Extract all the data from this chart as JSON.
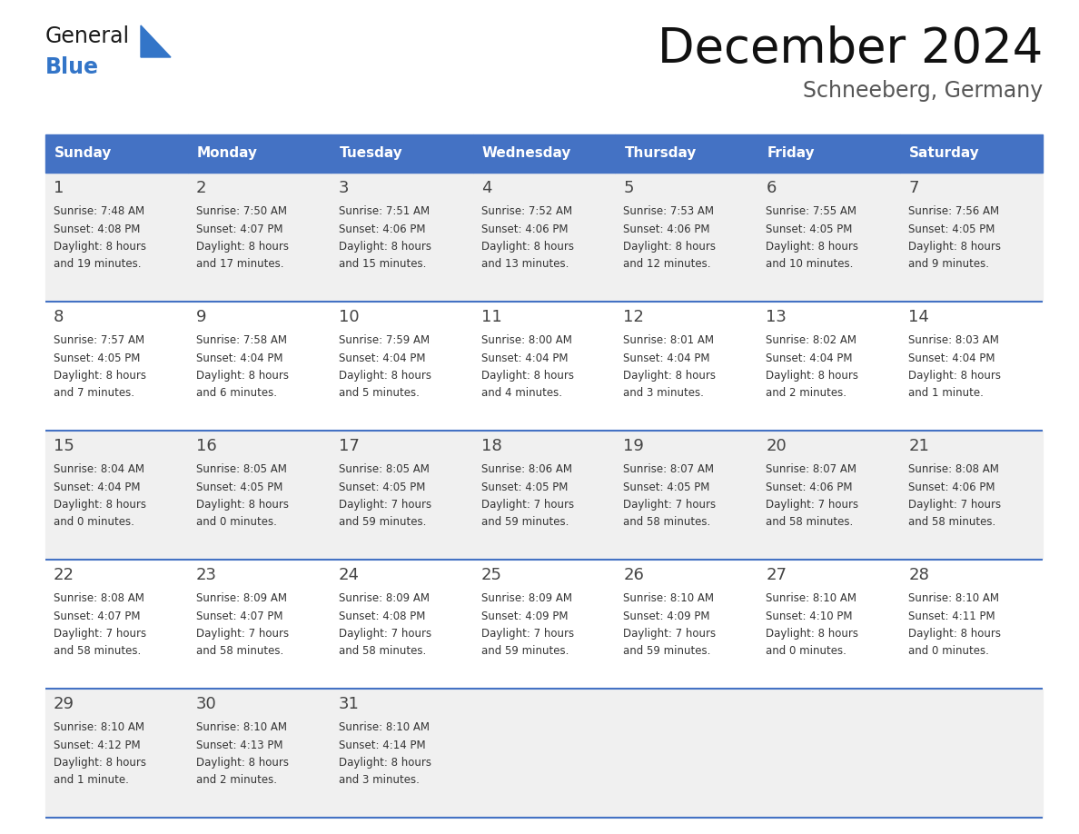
{
  "title": "December 2024",
  "subtitle": "Schneeberg, Germany",
  "header_bg": "#4472C4",
  "header_text_color": "#FFFFFF",
  "row_bg_even": "#F0F0F0",
  "row_bg_odd": "#FFFFFF",
  "border_color": "#4472C4",
  "cell_text_color": "#333333",
  "day_num_color": "#444444",
  "logo_general_color": "#1a1a1a",
  "logo_blue_color": "#3375C8",
  "logo_triangle_color": "#3375C8",
  "title_color": "#111111",
  "subtitle_color": "#555555",
  "day_names": [
    "Sunday",
    "Monday",
    "Tuesday",
    "Wednesday",
    "Thursday",
    "Friday",
    "Saturday"
  ],
  "weeks": [
    [
      {
        "day": "1",
        "sunrise": "7:48 AM",
        "sunset": "4:08 PM",
        "dl1": "Daylight: 8 hours",
        "dl2": "and 19 minutes."
      },
      {
        "day": "2",
        "sunrise": "7:50 AM",
        "sunset": "4:07 PM",
        "dl1": "Daylight: 8 hours",
        "dl2": "and 17 minutes."
      },
      {
        "day": "3",
        "sunrise": "7:51 AM",
        "sunset": "4:06 PM",
        "dl1": "Daylight: 8 hours",
        "dl2": "and 15 minutes."
      },
      {
        "day": "4",
        "sunrise": "7:52 AM",
        "sunset": "4:06 PM",
        "dl1": "Daylight: 8 hours",
        "dl2": "and 13 minutes."
      },
      {
        "day": "5",
        "sunrise": "7:53 AM",
        "sunset": "4:06 PM",
        "dl1": "Daylight: 8 hours",
        "dl2": "and 12 minutes."
      },
      {
        "day": "6",
        "sunrise": "7:55 AM",
        "sunset": "4:05 PM",
        "dl1": "Daylight: 8 hours",
        "dl2": "and 10 minutes."
      },
      {
        "day": "7",
        "sunrise": "7:56 AM",
        "sunset": "4:05 PM",
        "dl1": "Daylight: 8 hours",
        "dl2": "and 9 minutes."
      }
    ],
    [
      {
        "day": "8",
        "sunrise": "7:57 AM",
        "sunset": "4:05 PM",
        "dl1": "Daylight: 8 hours",
        "dl2": "and 7 minutes."
      },
      {
        "day": "9",
        "sunrise": "7:58 AM",
        "sunset": "4:04 PM",
        "dl1": "Daylight: 8 hours",
        "dl2": "and 6 minutes."
      },
      {
        "day": "10",
        "sunrise": "7:59 AM",
        "sunset": "4:04 PM",
        "dl1": "Daylight: 8 hours",
        "dl2": "and 5 minutes."
      },
      {
        "day": "11",
        "sunrise": "8:00 AM",
        "sunset": "4:04 PM",
        "dl1": "Daylight: 8 hours",
        "dl2": "and 4 minutes."
      },
      {
        "day": "12",
        "sunrise": "8:01 AM",
        "sunset": "4:04 PM",
        "dl1": "Daylight: 8 hours",
        "dl2": "and 3 minutes."
      },
      {
        "day": "13",
        "sunrise": "8:02 AM",
        "sunset": "4:04 PM",
        "dl1": "Daylight: 8 hours",
        "dl2": "and 2 minutes."
      },
      {
        "day": "14",
        "sunrise": "8:03 AM",
        "sunset": "4:04 PM",
        "dl1": "Daylight: 8 hours",
        "dl2": "and 1 minute."
      }
    ],
    [
      {
        "day": "15",
        "sunrise": "8:04 AM",
        "sunset": "4:04 PM",
        "dl1": "Daylight: 8 hours",
        "dl2": "and 0 minutes."
      },
      {
        "day": "16",
        "sunrise": "8:05 AM",
        "sunset": "4:05 PM",
        "dl1": "Daylight: 8 hours",
        "dl2": "and 0 minutes."
      },
      {
        "day": "17",
        "sunrise": "8:05 AM",
        "sunset": "4:05 PM",
        "dl1": "Daylight: 7 hours",
        "dl2": "and 59 minutes."
      },
      {
        "day": "18",
        "sunrise": "8:06 AM",
        "sunset": "4:05 PM",
        "dl1": "Daylight: 7 hours",
        "dl2": "and 59 minutes."
      },
      {
        "day": "19",
        "sunrise": "8:07 AM",
        "sunset": "4:05 PM",
        "dl1": "Daylight: 7 hours",
        "dl2": "and 58 minutes."
      },
      {
        "day": "20",
        "sunrise": "8:07 AM",
        "sunset": "4:06 PM",
        "dl1": "Daylight: 7 hours",
        "dl2": "and 58 minutes."
      },
      {
        "day": "21",
        "sunrise": "8:08 AM",
        "sunset": "4:06 PM",
        "dl1": "Daylight: 7 hours",
        "dl2": "and 58 minutes."
      }
    ],
    [
      {
        "day": "22",
        "sunrise": "8:08 AM",
        "sunset": "4:07 PM",
        "dl1": "Daylight: 7 hours",
        "dl2": "and 58 minutes."
      },
      {
        "day": "23",
        "sunrise": "8:09 AM",
        "sunset": "4:07 PM",
        "dl1": "Daylight: 7 hours",
        "dl2": "and 58 minutes."
      },
      {
        "day": "24",
        "sunrise": "8:09 AM",
        "sunset": "4:08 PM",
        "dl1": "Daylight: 7 hours",
        "dl2": "and 58 minutes."
      },
      {
        "day": "25",
        "sunrise": "8:09 AM",
        "sunset": "4:09 PM",
        "dl1": "Daylight: 7 hours",
        "dl2": "and 59 minutes."
      },
      {
        "day": "26",
        "sunrise": "8:10 AM",
        "sunset": "4:09 PM",
        "dl1": "Daylight: 7 hours",
        "dl2": "and 59 minutes."
      },
      {
        "day": "27",
        "sunrise": "8:10 AM",
        "sunset": "4:10 PM",
        "dl1": "Daylight: 8 hours",
        "dl2": "and 0 minutes."
      },
      {
        "day": "28",
        "sunrise": "8:10 AM",
        "sunset": "4:11 PM",
        "dl1": "Daylight: 8 hours",
        "dl2": "and 0 minutes."
      }
    ],
    [
      {
        "day": "29",
        "sunrise": "8:10 AM",
        "sunset": "4:12 PM",
        "dl1": "Daylight: 8 hours",
        "dl2": "and 1 minute."
      },
      {
        "day": "30",
        "sunrise": "8:10 AM",
        "sunset": "4:13 PM",
        "dl1": "Daylight: 8 hours",
        "dl2": "and 2 minutes."
      },
      {
        "day": "31",
        "sunrise": "8:10 AM",
        "sunset": "4:14 PM",
        "dl1": "Daylight: 8 hours",
        "dl2": "and 3 minutes."
      },
      null,
      null,
      null,
      null
    ]
  ]
}
